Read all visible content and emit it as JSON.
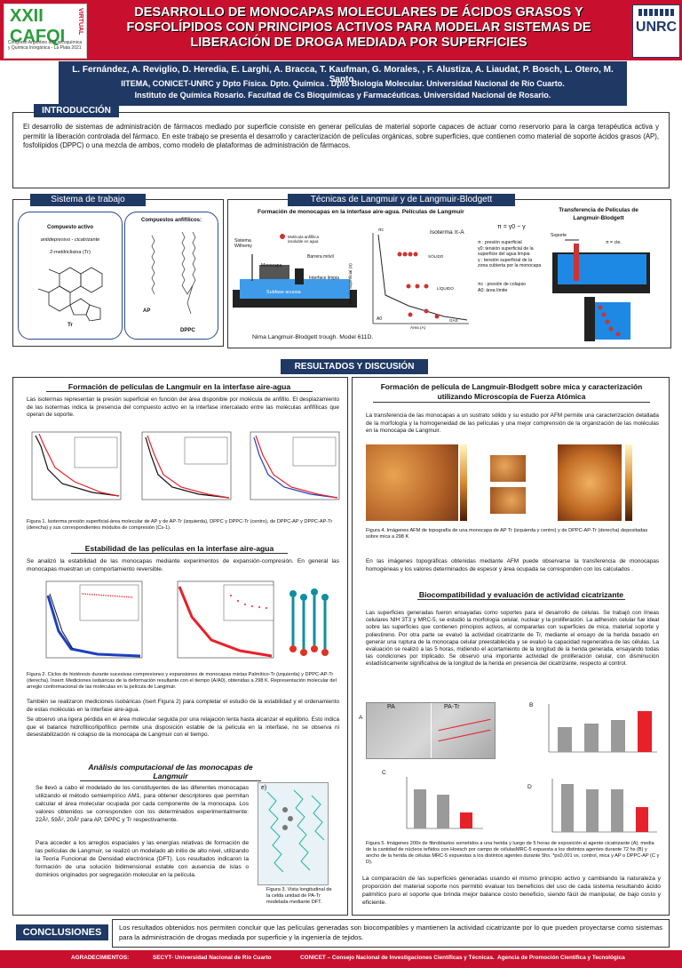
{
  "header": {
    "logo_big": "XXII CAFQI",
    "logo_side": "VIRTUAL",
    "logo_sub": "Congreso Argentino de Fisicoquímica y Química Inorgánica - La Plata 2021",
    "unrc": "UNRC",
    "title": "DESARROLLO DE MONOCAPAS MOLECULARES DE ÁCIDOS GRASOS Y FOSFOLÍPIDOS CON PRINCIPIOS ACTIVOS PARA MODELAR SISTEMAS DE LIBERACIÓN DE DROGA MEDIADA POR SUPERFICIES",
    "authors": "L. Fernández, A. Reviglio, D. Heredia, E. Larghi, A. Bracca, T. Kaufman, G. Morales, , F. Alustiza, A. Liaudat, P. Bosch, L. Otero, M. Santo.",
    "aff1": "IITEMA, CONICET-UNRC y Dpto Física. Dpto. Química . Dpto Biología Molecular. Universidad Nacional de Río Cuarto.",
    "aff2": "Instituto de Química Rosario. Facultad de Cs Bioquímicas y Farmacéuticas. Universidad Nacional de Rosario."
  },
  "intro": {
    "label": "INTRODUCCIÓN",
    "text": "El desarrollo de sistemas de administración de fármacos mediado por superficie consiste en generar películas de material soporte capaces de actuar como reservorio para la carga terapéutica activa y permitir la liberación controlada del fármaco. En este trabajo se presenta el desarrollo y caracterización de películas orgánicas, sobre superficies, que contienen como material de soporte ácidos grasos (AP), fosfolípidos (DPPC) o una mezcla de ambos, como modelo de plataformas de administración de fármacos."
  },
  "sistema": {
    "label": "Sistema de trabajo",
    "activo_title": "Compuesto activo",
    "activo_desc": "antidepresivo - cicatrizante",
    "activo_name": "2-metilriclisina (Tr)",
    "tr": "Tr",
    "anfi_title": "Compuestos anfifílicos:",
    "ap": "AP",
    "dppc": "DPPC"
  },
  "tecnicas": {
    "label": "Técnicas de Langmuir y de Langmuir-Blodgett",
    "formacion": "Formación de monocapas en la interfase aire-agua. Películas de Langmuir",
    "sistema_wilhemy": "Sistema Wilhemy",
    "molecula": "Molécula anfifílica insoluble en agua",
    "barrera": "Barrera móvil",
    "monocapa": "Monocapa",
    "interface": "Interface limpia",
    "subfase": "Subfase acuosa",
    "isoterma": "Isoterma π-A",
    "solido": "SÓLIDO",
    "liquido": "LÍQUIDO",
    "gas": "GAS",
    "y_axis": "Presión Superficial (π)",
    "x_axis": "Área (A)",
    "pi_c": "πc",
    "a0": "A0",
    "formula": "π = γ0 − γ",
    "def1": "π : presión superficial",
    "def2": "γ0: tensión superficial de la superficie del agua limpia",
    "def3": "γ : tensión superficial de la zona cubierta por la monocapa",
    "def4": "πc : presión de colapso",
    "def5": "A0: área límite",
    "trough": "Nima Langmuir-Blodgett trough.  Model 611D.",
    "transfer_title": "Transferencia de Películas de Langmuir-Blodgett",
    "soporte": "Soporte",
    "pi_cte": "π = cte."
  },
  "resultados": {
    "label": "RESULTADOS Y DISCUSIÓN",
    "s1_title": "Formación de películas de Langmuir en la interfase aire-agua",
    "s1_text": "Las isotermas representan la presión superficial en función del área disponible por molécula de anfifilo. El desplazamiento de las isotermas indica la presencia del compuesto activo en la interfase intercalado entre las moléculas anfifílicas que operan de soporte.",
    "fig1_cap": "Figura 1. Isoterma presión superficial-área molecular de AP y de AP-Tr (izquierda), DPPC y DPPC-Tr (centro), de DPPC-AP y DPPC-AP-Tr (derecha) y sus correspondientes módulos de compresión (Cs-1).",
    "s2_title": "Estabilidad de las películas en la interfase aire-agua",
    "s2_text": "Se analizó la estabilidad de las monocapas mediante experimentos de expansión-compresión. En general las monocapas muestran un comportamiento reversible.",
    "fig2_cap": "Figura 2. Ciclos de histéresis durante sucesivas compresiones y expansiones de monocapas mixtas Palmítico-Tr (izquierda) y DPPC-AP-Tr (derecha). Insert: Mediciones isobáricas de la deformación resultante con el tiempo (A/A0), obtenidas a 298 K. Representación molecular del arreglo conformacional de las moléculas en la película de Langmuir.",
    "s2_text2": "También se realizaron mediciones isobáricas (Isert Figura 2) para completar el estudio de la estabilidad y el ordenamiento de estas moléculas en la interfase aire-agua.",
    "s2_text3": "Se observó una ligera pérdida en el área molecular seguida por una relajación lenta hasta alcanzar el equilibrio. Esto indica que el balance hidrofílico/lipofílico permite una disposición estable de la película en la interfase, no se observa ni desestabilización ni colapso de la monocapa de Langmuir con el tiempo.",
    "s3_title": "Análisis computacional de las monocapas de Langmuir",
    "s3_text1": "Se llevó a cabo el modelado de los constituyentes de las diferentes monocapas utilizando el método semiempírico AM1, para obtener descriptores que permitan calcular el área molecular ocupada por cada componente de la monocapa. Los valores obtenidos se corresponden con los determinados experimentalmente: 22Å², 59Å², 20Å² para AP, DPPC y Tr respectivamente.",
    "s3_text2": "Para acceder a los arreglos espaciales y las energías relativas de formación de las películas de Langmuir, se realizó un modelado ab initio de alto nivel, utilizando la Teoría Funcional de Densidad electrónica (DFT). Los resultados indicaron la formación de una solución bidimensional estable con ausencia de islas o dominios originados por segregación molecular en la película.",
    "fig3_cap": "Figura 3. Vista longitudinal de la celda unidad de PA-Tr modelada mediante DFT.",
    "fig3_letter": "e)",
    "s4_title": "Formación de película de Langmuir-Blodgett sobre mica y caracterización utilizando Microscopía de Fuerza Atómica",
    "s4_text": "La transferencia de las monocapas a un sustrato sólido y su estudio por AFM permite una caracterización detallada de la morfología y la homogeneidad de las películas y una mejor comprensión de la organización de las moléculas en la monocapa de Langmuir.",
    "fig4_cap": "Figura 4. Imágenes AFM de topografía de una monocapa de AP Tr (izquierda y centro) y de DPPC-AP-Tr (derecha) depositadas sobre mica a 298 K",
    "s4_text2": "En las imágenes topográficas obtenidas mediante AFM puede observarse la transferencia de monocapas homogéneas y los valores determinados de espesor y área ocupada se corresponden con los calculados .",
    "s5_title": "Biocompatibilidad y evaluación de actividad cicatrizante",
    "s5_text": "Las superficies generadas fueron ensayadas como soportes para el desarrollo de células. Se trabajó con líneas celulares NIH 3T3 y MRC-5, se estudió la morfología celular, nuclear y la proliferación. La adhesión celular fue ideal sobre las superficies que contienen principios activos, al compararlas con superficies de mica, material soporte y poliestireno. Por otra parte se evaluó la actividad cicatrizante de Tr, mediante el ensayo de la herida basado en generar una ruptura de la monocapa celular preestablecida y se evaluó la capacidad regenerativa de las células. La evaluación se realizó a las 5 horas, midiendo el acortamiento de la longitud de la herida generada, ensayando todas las condiciones por triplicado. Se observó una importante actividad de proliferación celular, con disminución estadísticamente significativa de la longitud de la herida en presencia del cicatrizante, respecto al control.",
    "fig5_pa": "PA",
    "fig5_patr": "PA-Tr",
    "fig5_a": "A",
    "fig5_b": "B",
    "fig5_c": "C",
    "fig5_d": "D",
    "fig5_cap": "Figura 5. Imágenes 200x de fibroblastos sometidos a una herida y luego de 5 horas de exposición al agente cicatrizante (A); media de la cantidad de núcleos teñidos con Hoesch por campo de célulasMRC-5 expuesta a los distintos agentes durante 72 hs (B) y ancho de la herida de células MRC-5 expuestas a los distintos agentes durante 5hs. *p≤0,001 vs. control, mica y AP o DPPC-AP (C y D).",
    "s5_text2": "La comparación de las superficies generadas usando el mismo principio activo y cambiando la naturaleza y proporción del material soporte nos permitió evaluar los beneficios del uso de cada sistema resultando ácido palmítico puro el soporte que brinda mejor balance costo beneficio, siendo fácil de manipular, de bajo costo y eficiente."
  },
  "conclusiones": {
    "label": "CONCLUSIONES",
    "text": "Los resultados obtenidos nos permiten concluir que las películas generadas son biocompatibles y mantienen la actividad cicatrizante por lo que pueden proyectarse como sistemas para la administración de drogas mediada por superficie y la ingeniería de tejidos."
  },
  "footer": {
    "agradecimientos": "AGRADECIMIENTOS:",
    "f1": "SECYT- Universidad Nacional de Río Cuarto",
    "f2": "CONICET – Consejo Nacional de Investigaciones Científicas y Técnicas.",
    "f3": "Agencia de Promoción Científica y Tecnológica"
  },
  "colors": {
    "header_red": "#c8102e",
    "navy": "#1f3864",
    "ap_red": "#e8202a",
    "dppc_blue": "#1f3fbf"
  }
}
